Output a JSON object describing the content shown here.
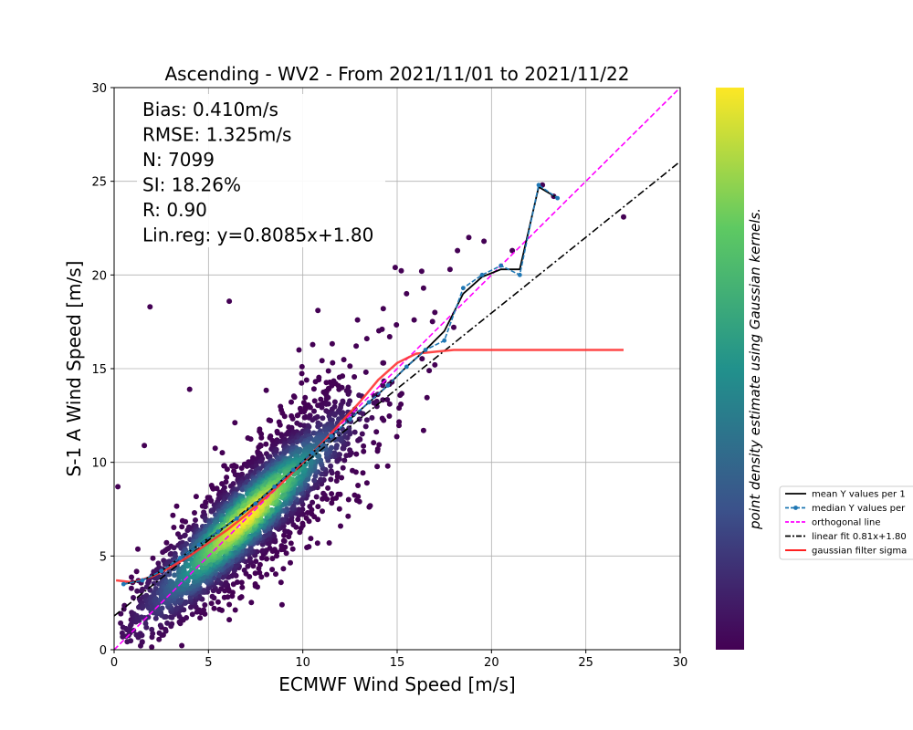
{
  "chart_data": {
    "type": "scatter",
    "title": "Ascending - WV2 - From 2021/11/01 to 2021/11/22",
    "xlabel": "ECMWF Wind Speed [m/s]",
    "ylabel": "S-1 A Wind Speed [m/s]",
    "xlim": [
      0,
      30
    ],
    "ylim": [
      0,
      30
    ],
    "xticks": [
      0,
      5,
      10,
      15,
      20,
      25,
      30
    ],
    "yticks": [
      0,
      5,
      10,
      15,
      20,
      25,
      30
    ],
    "grid": true,
    "stats": [
      "Bias: 0.410m/s",
      "RMSE: 1.325m/s",
      "N: 7099",
      "SI: 18.26%",
      "R: 0.90",
      "Lin.reg: y=0.8085x+1.80"
    ],
    "colorbar_label": "point density estimate using Gaussian kernels.",
    "colormap": [
      "#440154",
      "#3b528b",
      "#21918c",
      "#5ec962",
      "#fde725"
    ],
    "legend_position": "right (outside plot)",
    "legend": [
      {
        "label": "mean Y values per 1",
        "color": "#000000",
        "style": "solid"
      },
      {
        "label": "median Y values per",
        "color": "#1f77b4",
        "style": "dashed-marker"
      },
      {
        "label": "orthogonal line",
        "color": "#ff00ff",
        "style": "dashed"
      },
      {
        "label": "linear fit 0.81x+1.80",
        "color": "#000000",
        "style": "dashdot"
      },
      {
        "label": "gaussian filter sigma",
        "color": "#ff0000",
        "style": "solid"
      }
    ],
    "series": [
      {
        "name": "mean Y values per 1",
        "x": [
          0.5,
          1.5,
          2.5,
          3.5,
          4.5,
          5.5,
          6.5,
          7.5,
          8.5,
          9.5,
          10.5,
          11.5,
          12.5,
          13.5,
          14.5,
          15.5,
          16.5,
          17.5,
          18.5,
          19.5,
          20.5,
          21.5,
          22.5,
          23.5
        ],
        "y": [
          3.5,
          3.7,
          4.2,
          4.9,
          5.6,
          6.3,
          7.0,
          7.8,
          8.7,
          9.6,
          10.5,
          11.4,
          12.3,
          13.2,
          14.1,
          15.1,
          16.0,
          17.0,
          19.0,
          19.9,
          20.3,
          20.3,
          24.7,
          24.1
        ]
      },
      {
        "name": "median Y values per",
        "x": [
          0.5,
          1.5,
          2.5,
          3.5,
          4.5,
          5.5,
          6.5,
          7.5,
          8.5,
          9.5,
          10.5,
          11.5,
          12.5,
          13.5,
          14.5,
          15.5,
          16.5,
          17.5,
          18.5,
          19.5,
          20.5,
          21.5,
          22.5,
          23.5
        ],
        "y": [
          3.5,
          3.7,
          4.2,
          4.9,
          5.6,
          6.3,
          7.0,
          7.8,
          8.7,
          9.6,
          10.5,
          11.4,
          12.3,
          13.2,
          14.1,
          15.1,
          16.0,
          16.5,
          19.3,
          20.0,
          20.5,
          20.0,
          24.8,
          24.1
        ]
      },
      {
        "name": "gaussian filter sigma",
        "x": [
          0.1,
          1,
          2,
          3,
          4,
          5,
          6,
          7,
          8,
          9,
          10,
          11,
          12,
          13,
          14,
          15,
          16,
          17,
          18,
          19,
          20,
          22,
          24,
          27
        ],
        "y": [
          3.7,
          3.6,
          3.9,
          4.4,
          5.0,
          5.7,
          6.4,
          7.2,
          8.1,
          9.0,
          10.0,
          11.0,
          12.1,
          13.2,
          14.4,
          15.3,
          15.8,
          15.9,
          16.0,
          16.0,
          16.0,
          16.0,
          16.0,
          16.0
        ]
      }
    ],
    "orthogonal_line": {
      "x": [
        0,
        30
      ],
      "y": [
        0,
        30
      ]
    },
    "linear_fit": {
      "slope": 0.8085,
      "intercept": 1.8,
      "x": [
        0,
        30
      ]
    },
    "outliers": [
      [
        1.9,
        18.3
      ],
      [
        6.1,
        18.6
      ],
      [
        4.0,
        13.9
      ],
      [
        10.8,
        18.1
      ],
      [
        9.8,
        16.0
      ],
      [
        14.9,
        20.4
      ],
      [
        16.3,
        20.2
      ],
      [
        17.8,
        20.3
      ],
      [
        18.2,
        21.3
      ],
      [
        18.8,
        22.0
      ],
      [
        19.6,
        21.8
      ],
      [
        21.1,
        21.3
      ],
      [
        22.7,
        24.8
      ],
      [
        23.3,
        24.2
      ],
      [
        27.0,
        23.1
      ],
      [
        8.9,
        2.4
      ],
      [
        16.4,
        19.3
      ],
      [
        17.0,
        18.0
      ],
      [
        15.5,
        19.0
      ],
      [
        14.2,
        17.1
      ],
      [
        12.9,
        17.6
      ],
      [
        15.9,
        17.6
      ],
      [
        11.4,
        5.7
      ],
      [
        13.0,
        7.9
      ],
      [
        14.5,
        9.8
      ],
      [
        13.4,
        8.9
      ],
      [
        12.0,
        6.6
      ],
      [
        0.2,
        8.7
      ],
      [
        1.6,
        10.9
      ],
      [
        0.9,
        1.6
      ],
      [
        2.5,
        1.2
      ],
      [
        5.3,
        2.2
      ],
      [
        6.1,
        1.6
      ],
      [
        9.0,
        6.1
      ],
      [
        18.0,
        17.2
      ],
      [
        17.0,
        15.2
      ],
      [
        16.7,
        14.9
      ],
      [
        15.1,
        12.9
      ],
      [
        16.4,
        11.7
      ],
      [
        15.2,
        13.1
      ]
    ]
  }
}
